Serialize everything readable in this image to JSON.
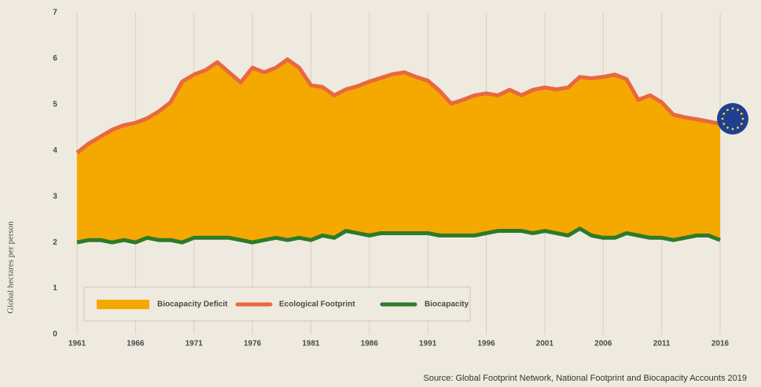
{
  "chart_data": {
    "type": "area-between",
    "y_label": "Global hectares per person",
    "source": "Source: Global Footprint Network, National Footprint and Biocapacity Accounts 2019",
    "x": [
      1961,
      1962,
      1963,
      1964,
      1965,
      1966,
      1967,
      1968,
      1969,
      1970,
      1971,
      1972,
      1973,
      1974,
      1975,
      1976,
      1977,
      1978,
      1979,
      1980,
      1981,
      1982,
      1983,
      1984,
      1985,
      1986,
      1987,
      1988,
      1989,
      1990,
      1991,
      1992,
      1993,
      1994,
      1995,
      1996,
      1997,
      1998,
      1999,
      2000,
      2001,
      2002,
      2003,
      2004,
      2005,
      2006,
      2007,
      2008,
      2009,
      2010,
      2011,
      2012,
      2013,
      2014,
      2015,
      2016
    ],
    "xlim": [
      1961,
      2016
    ],
    "xticks": [
      1961,
      1966,
      1971,
      1976,
      1981,
      1986,
      1991,
      1996,
      2001,
      2006,
      2011,
      2016
    ],
    "ylim": [
      0,
      7
    ],
    "yticks": [
      0,
      1,
      2,
      3,
      4,
      5,
      6,
      7
    ],
    "grid": true,
    "area": {
      "name": "Biocapacity Deficit",
      "color": "#f5a800"
    },
    "series": [
      {
        "name": "Ecological Footprint",
        "color": "#e8683f",
        "values": [
          3.95,
          4.15,
          4.3,
          4.45,
          4.55,
          4.6,
          4.7,
          4.85,
          5.05,
          5.5,
          5.65,
          5.75,
          5.92,
          5.7,
          5.48,
          5.8,
          5.7,
          5.8,
          5.98,
          5.8,
          5.42,
          5.38,
          5.2,
          5.33,
          5.4,
          5.5,
          5.58,
          5.66,
          5.7,
          5.6,
          5.52,
          5.3,
          5.02,
          5.1,
          5.2,
          5.24,
          5.2,
          5.32,
          5.2,
          5.32,
          5.37,
          5.33,
          5.37,
          5.6,
          5.57,
          5.6,
          5.65,
          5.55,
          5.1,
          5.2,
          5.05,
          4.78,
          4.72,
          4.68,
          4.63,
          4.58
        ]
      },
      {
        "name": "Biocapacity",
        "color": "#2d7a2a",
        "values": [
          2.0,
          2.05,
          2.05,
          2.0,
          2.05,
          2.0,
          2.1,
          2.05,
          2.05,
          2.0,
          2.1,
          2.1,
          2.1,
          2.1,
          2.05,
          2.0,
          2.05,
          2.1,
          2.05,
          2.1,
          2.05,
          2.15,
          2.1,
          2.25,
          2.2,
          2.15,
          2.2,
          2.2,
          2.2,
          2.2,
          2.2,
          2.15,
          2.15,
          2.15,
          2.15,
          2.2,
          2.25,
          2.25,
          2.25,
          2.2,
          2.25,
          2.2,
          2.15,
          2.3,
          2.15,
          2.1,
          2.1,
          2.2,
          2.15,
          2.1,
          2.1,
          2.05,
          2.1,
          2.15,
          2.15,
          2.05
        ]
      }
    ]
  }
}
